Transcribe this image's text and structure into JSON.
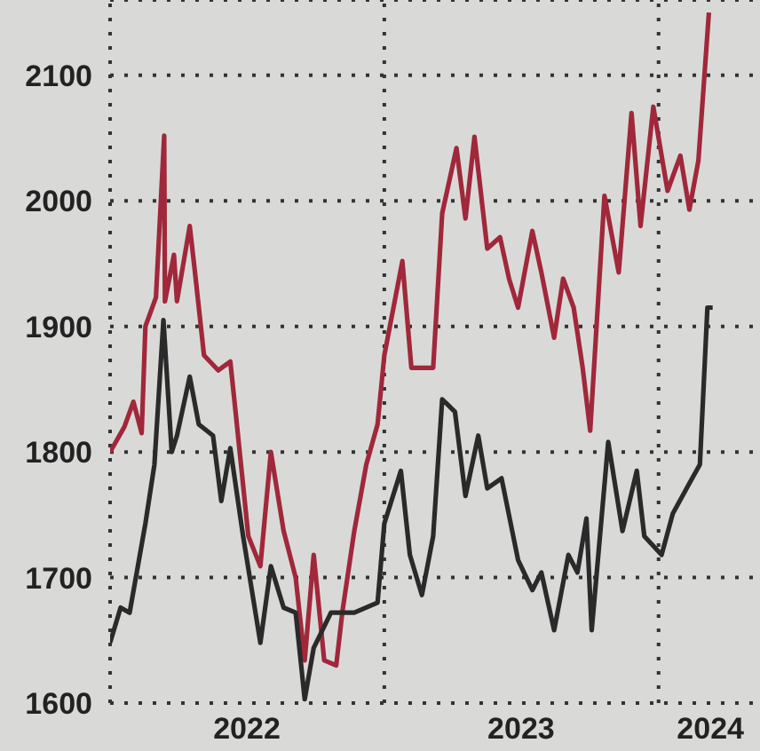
{
  "chart_data": {
    "type": "line",
    "xlim": [
      "2022-01-01",
      "2024-05-15"
    ],
    "ylim": [
      1600,
      2160
    ],
    "xticks": [
      {
        "value": "2022-01-01",
        "label": null
      },
      {
        "value": "2022-07-02",
        "label": "2022"
      },
      {
        "value": "2023-01-01",
        "label": null
      },
      {
        "value": "2023-07-02",
        "label": "2023"
      },
      {
        "value": "2024-01-01",
        "label": null
      },
      {
        "value": "2024-03-10",
        "label": "2024"
      }
    ],
    "yticks": [
      1600,
      1700,
      1800,
      1900,
      2000,
      2100
    ],
    "grid": true,
    "line_style": "solid",
    "marker": "none",
    "series": [
      {
        "color": "#a0283a",
        "x": [
          "2022-01-01",
          "2022-01-20",
          "2022-02-01",
          "2022-02-12",
          "2022-02-17",
          "2022-03-03",
          "2022-03-14",
          "2022-03-15",
          "2022-03-27",
          "2022-03-31",
          "2022-04-17",
          "2022-04-24",
          "2022-05-06",
          "2022-05-25",
          "2022-06-10",
          "2022-06-17",
          "2022-07-04",
          "2022-07-20",
          "2022-08-03",
          "2022-08-20",
          "2022-09-05",
          "2022-09-17",
          "2022-09-29",
          "2022-10-13",
          "2022-10-29",
          "2022-11-06",
          "2022-11-22",
          "2022-12-08",
          "2022-12-23",
          "2023-01-01",
          "2023-01-25",
          "2023-02-06",
          "2023-03-07",
          "2023-03-19",
          "2023-04-07",
          "2023-04-19",
          "2023-05-01",
          "2023-05-18",
          "2023-06-04",
          "2023-06-16",
          "2023-06-28",
          "2023-07-17",
          "2023-07-29",
          "2023-08-15",
          "2023-08-27",
          "2023-09-10",
          "2023-09-22",
          "2023-10-02",
          "2023-10-21",
          "2023-11-09",
          "2023-11-26",
          "2023-12-08",
          "2023-12-25",
          "2024-01-13",
          "2024-01-30",
          "2024-02-11",
          "2024-02-23",
          "2024-03-08"
        ],
        "values": [
          1800,
          1820,
          1840,
          1815,
          1900,
          1923,
          2052,
          1920,
          1957,
          1920,
          1980,
          1943,
          1877,
          1865,
          1872,
          1832,
          1733,
          1709,
          1800,
          1737,
          1700,
          1634,
          1718,
          1634,
          1630,
          1672,
          1737,
          1790,
          1822,
          1877,
          1952,
          1867,
          1867,
          1990,
          2042,
          1986,
          2051,
          1962,
          1971,
          1938,
          1915,
          1976,
          1943,
          1891,
          1938,
          1915,
          1867,
          1817,
          2004,
          1943,
          2070,
          1980,
          2075,
          2008,
          2036,
          1993,
          2032,
          2150
        ]
      },
      {
        "color": "#2a2a2a",
        "x": [
          "2022-01-01",
          "2022-01-15",
          "2022-01-27",
          "2022-02-17",
          "2022-03-01",
          "2022-03-13",
          "2022-03-24",
          "2022-03-31",
          "2022-04-17",
          "2022-04-29",
          "2022-05-18",
          "2022-05-29",
          "2022-06-10",
          "2022-06-27",
          "2022-07-20",
          "2022-08-03",
          "2022-08-20",
          "2022-09-05",
          "2022-09-17",
          "2022-09-29",
          "2022-10-22",
          "2022-11-22",
          "2022-12-23",
          "2023-01-01",
          "2023-01-23",
          "2023-02-04",
          "2023-02-20",
          "2023-03-07",
          "2023-03-19",
          "2023-04-05",
          "2023-04-19",
          "2023-05-06",
          "2023-05-18",
          "2023-06-06",
          "2023-06-28",
          "2023-07-17",
          "2023-07-29",
          "2023-08-15",
          "2023-09-03",
          "2023-09-15",
          "2023-09-27",
          "2023-10-04",
          "2023-10-26",
          "2023-11-14",
          "2023-12-03",
          "2023-12-13",
          "2024-01-05",
          "2024-01-20",
          "2024-02-11",
          "2024-02-25",
          "2024-03-06",
          "2024-03-13"
        ],
        "values": [
          1648,
          1676,
          1672,
          1743,
          1790,
          1905,
          1800,
          1813,
          1860,
          1822,
          1813,
          1761,
          1803,
          1733,
          1648,
          1709,
          1676,
          1672,
          1603,
          1644,
          1672,
          1672,
          1680,
          1743,
          1785,
          1718,
          1686,
          1733,
          1842,
          1832,
          1765,
          1813,
          1771,
          1779,
          1714,
          1690,
          1704,
          1658,
          1718,
          1704,
          1747,
          1658,
          1808,
          1737,
          1785,
          1733,
          1718,
          1751,
          1775,
          1790,
          1915,
          1915
        ]
      }
    ]
  }
}
